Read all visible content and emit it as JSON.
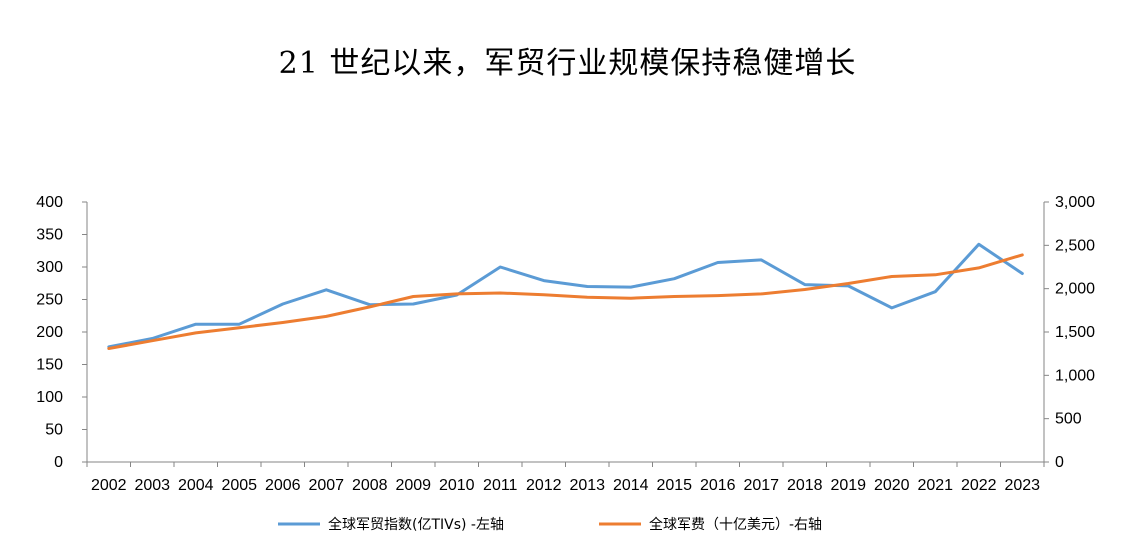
{
  "chart_data": {
    "type": "line",
    "title": "21 世纪以来，军贸行业规模保持稳健增长",
    "categories": [
      "2002",
      "2003",
      "2004",
      "2005",
      "2006",
      "2007",
      "2008",
      "2009",
      "2010",
      "2011",
      "2012",
      "2013",
      "2014",
      "2015",
      "2016",
      "2017",
      "2018",
      "2019",
      "2020",
      "2021",
      "2022",
      "2023"
    ],
    "series": [
      {
        "name": "全球军贸指数(亿TIVs) -左轴",
        "axis": "left",
        "color": "#5b9bd5",
        "values": [
          177,
          190,
          212,
          212,
          243,
          265,
          242,
          243,
          257,
          300,
          279,
          270,
          269,
          282,
          307,
          311,
          273,
          271,
          237,
          262,
          335,
          290
        ]
      },
      {
        "name": "全球军费（十亿美元）-右轴",
        "axis": "right",
        "color": "#ed7d31",
        "values": [
          1310,
          1400,
          1490,
          1550,
          1610,
          1680,
          1790,
          1910,
          1940,
          1950,
          1930,
          1900,
          1890,
          1910,
          1920,
          1940,
          1990,
          2060,
          2140,
          2160,
          2240,
          2390
        ]
      }
    ],
    "y_left": {
      "min": 0,
      "max": 400,
      "ticks": [
        "0",
        "50",
        "100",
        "150",
        "200",
        "250",
        "300",
        "350",
        "400"
      ],
      "tick_values": [
        0,
        50,
        100,
        150,
        200,
        250,
        300,
        350,
        400
      ]
    },
    "y_right": {
      "min": 0,
      "max": 3000,
      "ticks": [
        "0",
        "500",
        "1,000",
        "1,500",
        "2,000",
        "2,500",
        "3,000"
      ],
      "tick_values": [
        0,
        500,
        1000,
        1500,
        2000,
        2500,
        3000
      ]
    },
    "grid": false,
    "legend_position": "bottom"
  }
}
